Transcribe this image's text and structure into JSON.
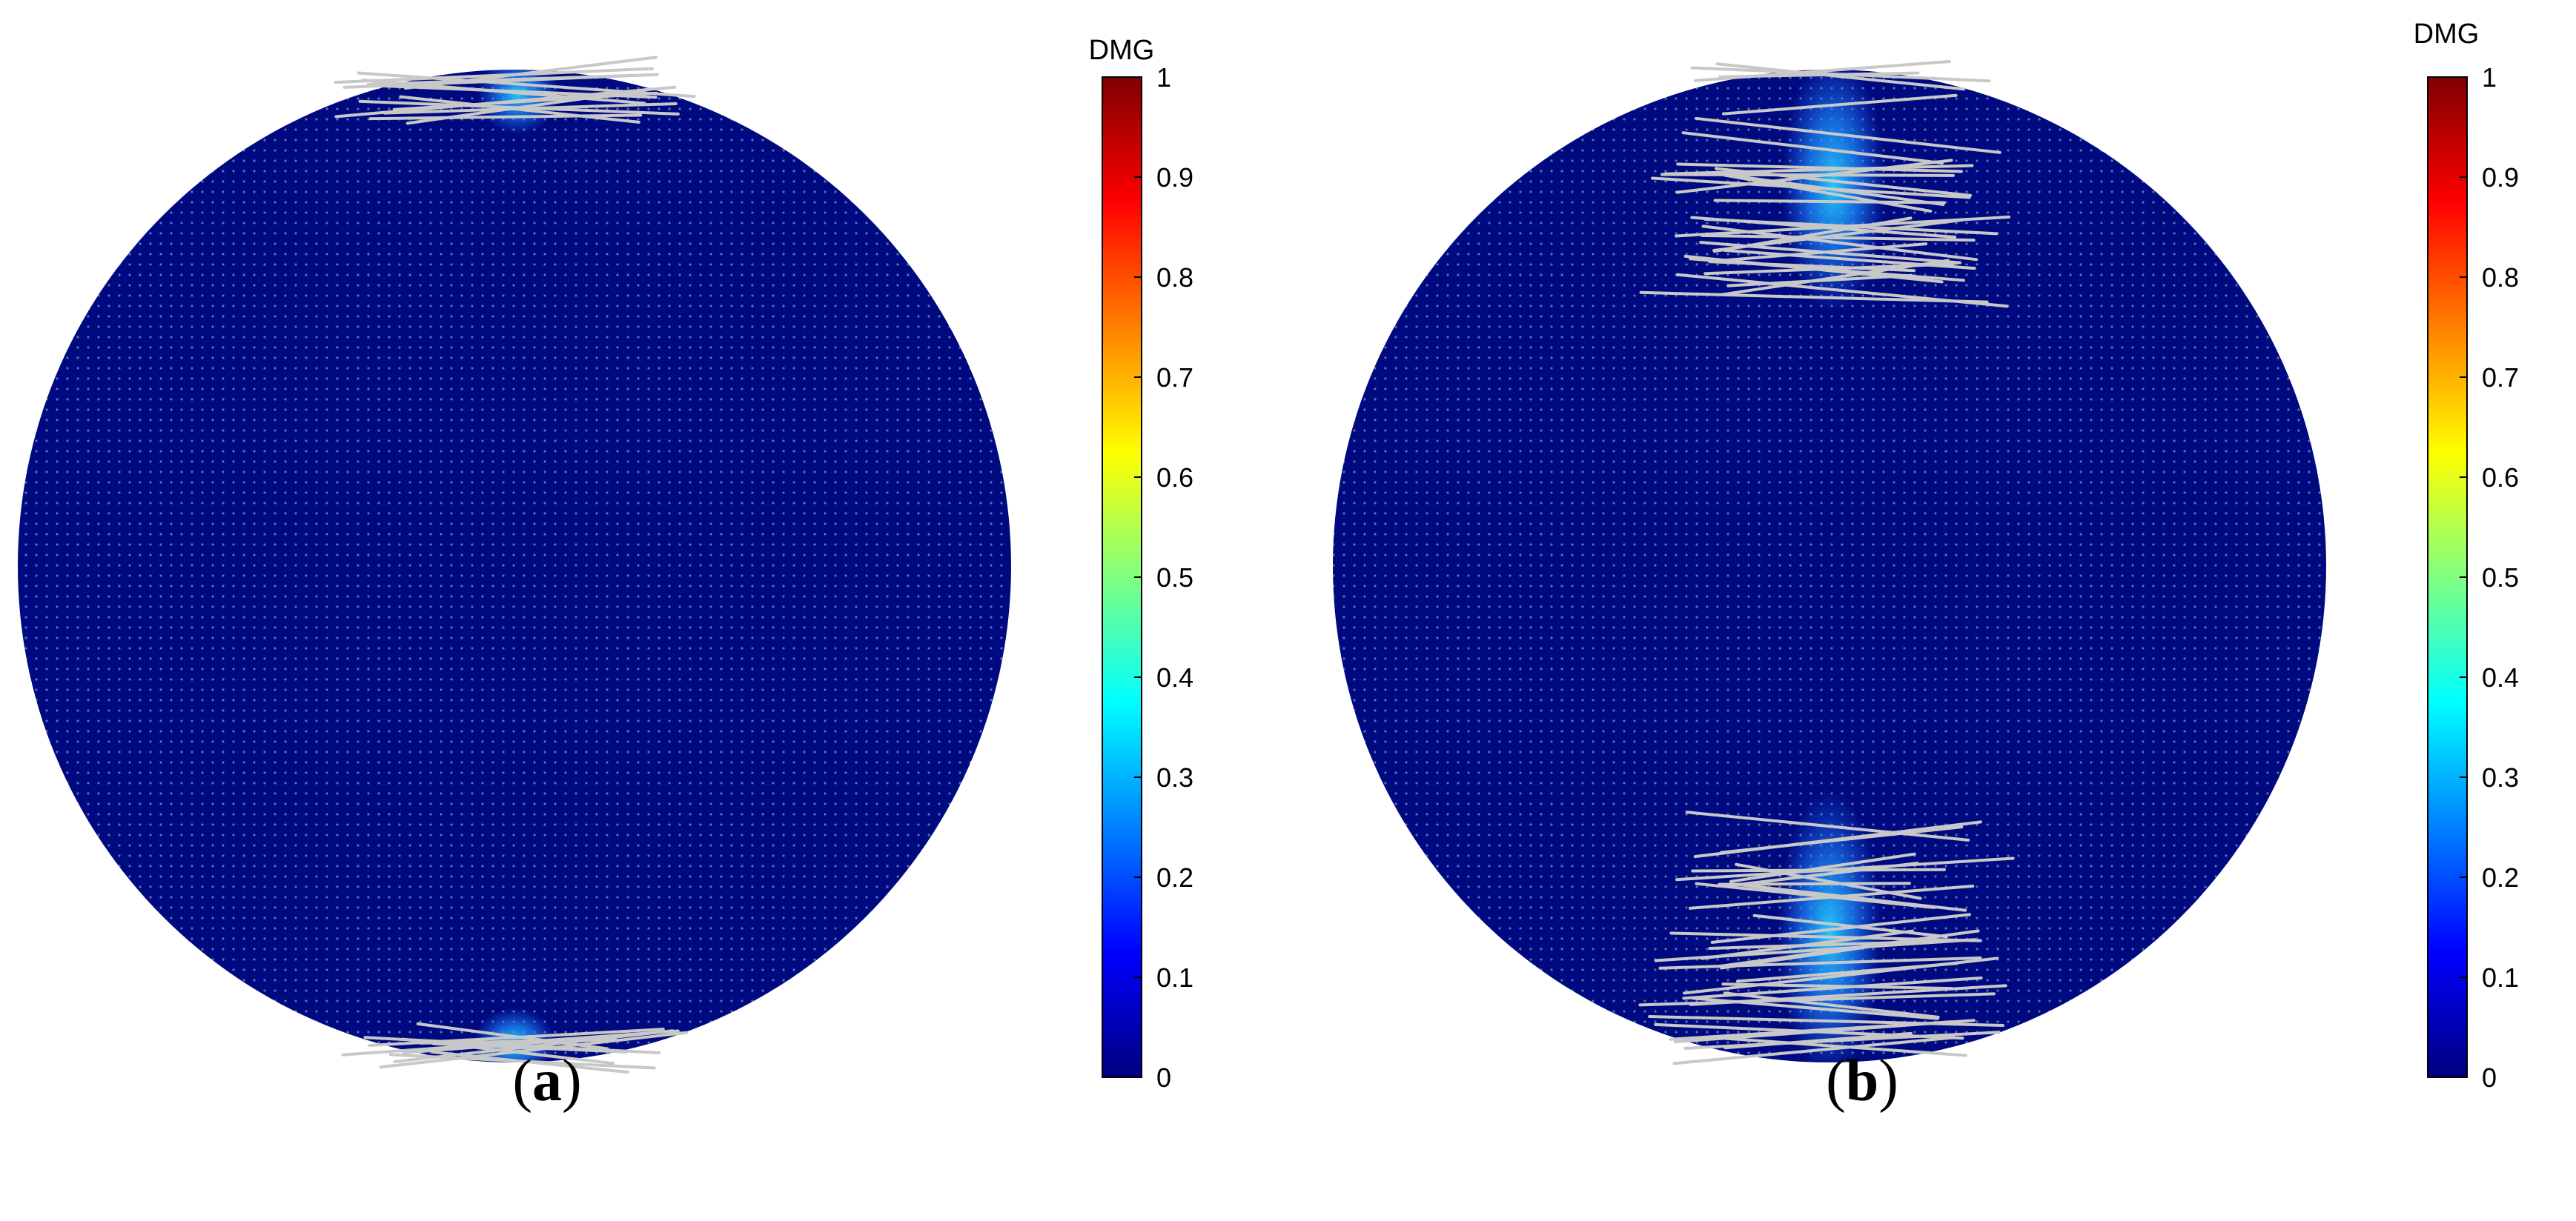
{
  "figure": {
    "panels": [
      {
        "id": "a",
        "caption_open": "(",
        "caption_letter": "a",
        "caption_close": ")",
        "colorbar": {
          "title": "DMG",
          "ticks": [
            "0",
            "0.1",
            "0.2",
            "0.3",
            "0.4",
            "0.5",
            "0.6",
            "0.7",
            "0.8",
            "0.9",
            "1"
          ],
          "min": 0,
          "max": 1
        },
        "damage_zones": [
          {
            "location": "top",
            "relative_extent": 0.05
          },
          {
            "location": "bottom",
            "relative_extent": 0.04
          }
        ]
      },
      {
        "id": "b",
        "caption_open": "(",
        "caption_letter": "b",
        "caption_close": ")",
        "colorbar": {
          "title": "DMG",
          "ticks": [
            "0",
            "0.1",
            "0.2",
            "0.3",
            "0.4",
            "0.5",
            "0.6",
            "0.7",
            "0.8",
            "0.9",
            "1"
          ],
          "min": 0,
          "max": 1
        },
        "damage_zones": [
          {
            "location": "top",
            "relative_extent": 0.23
          },
          {
            "location": "bottom",
            "relative_extent": 0.26
          }
        ]
      }
    ],
    "colors": {
      "disc": "#000a80",
      "disc_dots": "#b0bde0",
      "crack_lines": "#c8c8c8",
      "damage_glow": "#1e8cff",
      "damage_core": "#27d3ff",
      "colormap": [
        "#000080",
        "#0000ff",
        "#0080ff",
        "#00ffff",
        "#80ff80",
        "#ffff00",
        "#ff8000",
        "#ff0000",
        "#800000"
      ]
    }
  }
}
